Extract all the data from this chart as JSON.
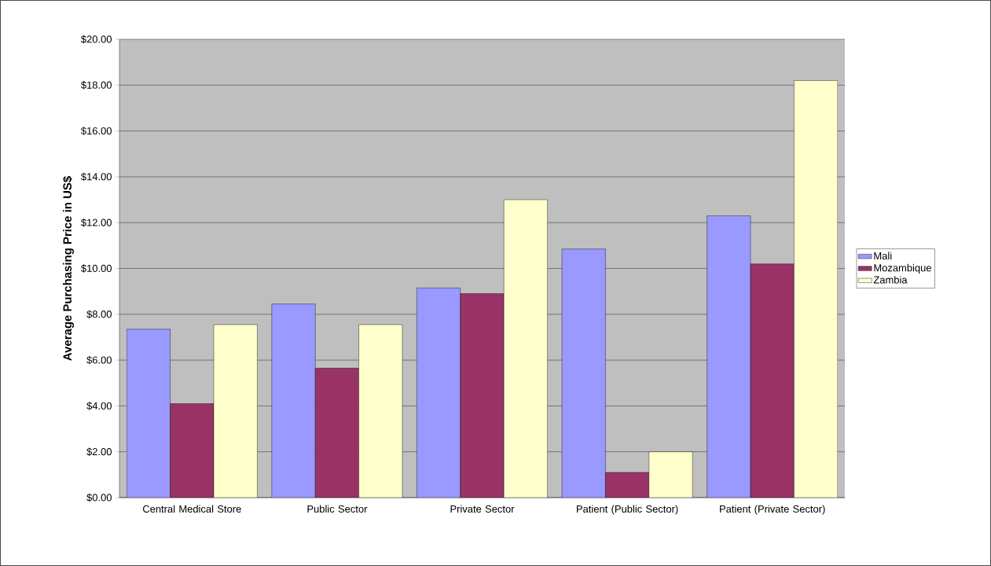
{
  "chart_data": {
    "type": "bar",
    "ylabel": "Average Purchasing Price in US$",
    "categories": [
      "Central Medical Store",
      "Public Sector",
      "Private Sector",
      "Patient (Public Sector)",
      "Patient (Private Sector)"
    ],
    "series": [
      {
        "name": "Mali",
        "color": "#9999ff",
        "values": [
          7.35,
          8.45,
          9.15,
          10.85,
          12.3
        ]
      },
      {
        "name": "Mozambique",
        "color": "#993366",
        "values": [
          4.1,
          5.65,
          8.9,
          1.1,
          10.2
        ]
      },
      {
        "name": "Zambia",
        "color": "#ffffcc",
        "values": [
          7.55,
          7.55,
          13.0,
          2.0,
          18.2
        ]
      }
    ],
    "ylim": [
      0,
      20
    ],
    "yticks": [
      {
        "value": 0,
        "label": "$0.00"
      },
      {
        "value": 2,
        "label": "$2.00"
      },
      {
        "value": 4,
        "label": "$4.00"
      },
      {
        "value": 6,
        "label": "$6.00"
      },
      {
        "value": 8,
        "label": "$8.00"
      },
      {
        "value": 10,
        "label": "$10.00"
      },
      {
        "value": 12,
        "label": "$12.00"
      },
      {
        "value": 14,
        "label": "$14.00"
      },
      {
        "value": 16,
        "label": "$16.00"
      },
      {
        "value": 18,
        "label": "$18.00"
      },
      {
        "value": 20,
        "label": "$20.00"
      }
    ],
    "grid": "y",
    "legend": "right"
  }
}
